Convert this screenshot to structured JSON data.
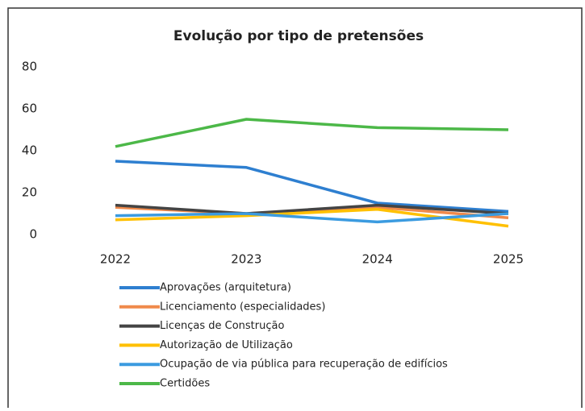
{
  "chart_data": {
    "type": "line",
    "title": "Evolução por tipo de pretensões",
    "categories": [
      "2022",
      "2023",
      "2024",
      "2025"
    ],
    "series": [
      {
        "name": "Aprovações (arquitetura)",
        "color": "#2e7fd0",
        "values": [
          35,
          32,
          15,
          11
        ]
      },
      {
        "name": "Licenciamento (especialidades)",
        "color": "#f08a4b",
        "values": [
          13,
          10,
          13,
          8
        ]
      },
      {
        "name": "Licenças de Construção",
        "color": "#444444",
        "values": [
          14,
          10,
          14,
          10
        ]
      },
      {
        "name": "Autorização de Utilização",
        "color": "#ffc000",
        "values": [
          7,
          9,
          12,
          4
        ]
      },
      {
        "name": "Ocupação de via pública para recuperação de edifícios",
        "color": "#3b9be0",
        "values": [
          9,
          10,
          6,
          10
        ]
      },
      {
        "name": "Certidões",
        "color": "#4cb848",
        "values": [
          42,
          55,
          51,
          50
        ]
      }
    ],
    "ylim": [
      0,
      80
    ],
    "yticks": [
      0,
      20,
      40,
      60,
      80
    ],
    "grid": false,
    "legend": "bottom"
  }
}
